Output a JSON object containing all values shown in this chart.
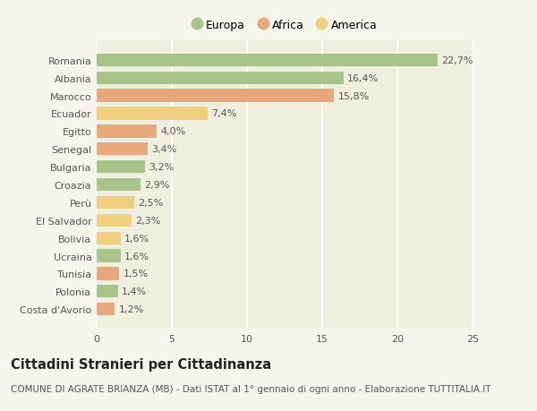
{
  "categories": [
    "Costa d'Avorio",
    "Polonia",
    "Tunisia",
    "Ucraina",
    "Bolivia",
    "El Salvador",
    "Perù",
    "Croazia",
    "Bulgaria",
    "Senegal",
    "Egitto",
    "Ecuador",
    "Marocco",
    "Albania",
    "Romania"
  ],
  "values": [
    1.2,
    1.4,
    1.5,
    1.6,
    1.6,
    2.3,
    2.5,
    2.9,
    3.2,
    3.4,
    4.0,
    7.4,
    15.8,
    16.4,
    22.7
  ],
  "labels": [
    "1,2%",
    "1,4%",
    "1,5%",
    "1,6%",
    "1,6%",
    "2,3%",
    "2,5%",
    "2,9%",
    "3,2%",
    "3,4%",
    "4,0%",
    "7,4%",
    "15,8%",
    "16,4%",
    "22,7%"
  ],
  "continents": [
    "Africa",
    "Europa",
    "Africa",
    "Europa",
    "America",
    "America",
    "America",
    "Europa",
    "Europa",
    "Africa",
    "Africa",
    "America",
    "Africa",
    "Europa",
    "Europa"
  ],
  "colors": {
    "Europa": "#a8c48a",
    "Africa": "#e8a87c",
    "America": "#f0d080"
  },
  "legend_labels": [
    "Europa",
    "Africa",
    "America"
  ],
  "legend_colors": [
    "#a8c48a",
    "#e8a87c",
    "#f0d080"
  ],
  "title": "Cittadini Stranieri per Cittadinanza",
  "subtitle": "COMUNE DI AGRATE BRIANZA (MB) - Dati ISTAT al 1° gennaio di ogni anno - Elaborazione TUTTITALIA.IT",
  "xlim": [
    0,
    25
  ],
  "xticks": [
    0,
    5,
    10,
    15,
    20,
    25
  ],
  "figure_bg": "#f5f5eb",
  "plot_bg": "#efefdf",
  "grid_color": "#ffffff",
  "text_color": "#555555",
  "title_color": "#222222",
  "title_fontsize": 10.5,
  "subtitle_fontsize": 7.5,
  "label_fontsize": 8,
  "tick_fontsize": 8,
  "bar_height": 0.72
}
